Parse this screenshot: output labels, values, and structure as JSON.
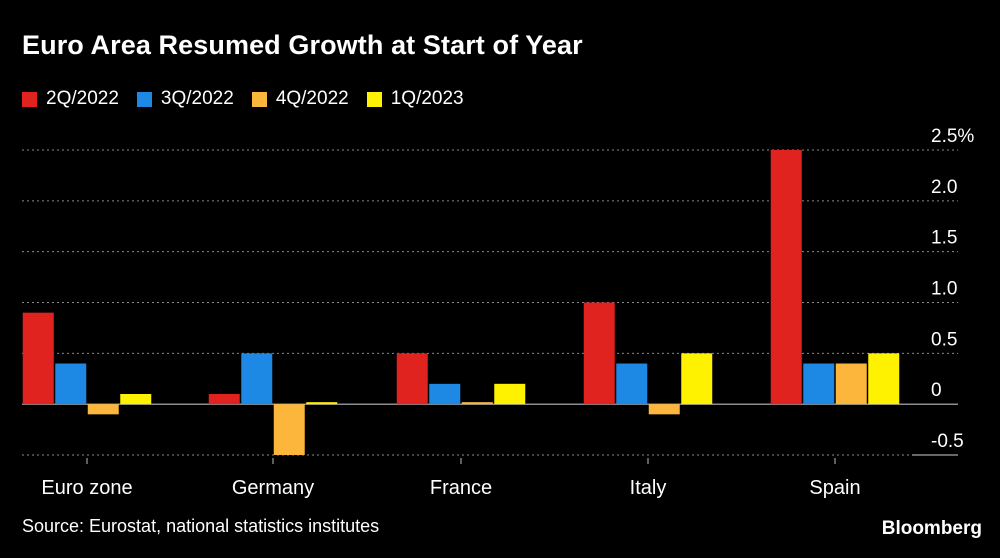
{
  "chart_data": {
    "type": "bar",
    "title": "Euro Area Resumed Growth at Start of Year",
    "categories": [
      "Euro zone",
      "Germany",
      "France",
      "Italy",
      "Spain"
    ],
    "series": [
      {
        "name": "2Q/2022",
        "color": "#e0231f",
        "values": [
          0.9,
          0.1,
          0.5,
          1.0,
          2.5
        ]
      },
      {
        "name": "3Q/2022",
        "color": "#1e88e5",
        "values": [
          0.4,
          0.5,
          0.2,
          0.4,
          0.4
        ]
      },
      {
        "name": "4Q/2022",
        "color": "#fbb63b",
        "values": [
          -0.1,
          -0.5,
          0.0,
          -0.1,
          0.4
        ]
      },
      {
        "name": "1Q/2023",
        "color": "#fff200",
        "values": [
          0.1,
          0.0,
          0.2,
          0.5,
          0.5
        ]
      }
    ],
    "ylim": [
      -0.5,
      2.5
    ],
    "yticks": [
      {
        "value": 2.5,
        "label": "2.5%"
      },
      {
        "value": 2.0,
        "label": "2.0"
      },
      {
        "value": 1.5,
        "label": "1.5"
      },
      {
        "value": 1.0,
        "label": "1.0"
      },
      {
        "value": 0.5,
        "label": "0.5"
      },
      {
        "value": 0.0,
        "label": "0"
      },
      {
        "value": -0.5,
        "label": "-0.5"
      }
    ],
    "grid": true,
    "legend_position": "top-left"
  },
  "source": "Source: Eurostat, national statistics institutes",
  "brand": "Bloomberg"
}
